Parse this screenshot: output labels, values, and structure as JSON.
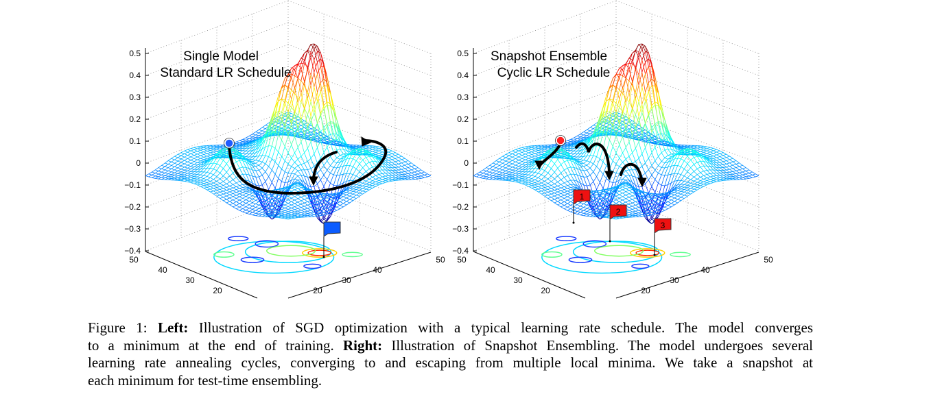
{
  "plots": [
    {
      "title_line1": "Single Model",
      "title_line2": "Standard LR Schedule",
      "marker_color": "#1f5bff",
      "flags": [
        {
          "label": "",
          "color": "#0b5cff"
        }
      ]
    },
    {
      "title_line1": "Snapshot Ensemble",
      "title_line2": "Cyclic LR Schedule",
      "marker_color": "#ff2020",
      "flags": [
        {
          "label": "1",
          "color": "#ee1111"
        },
        {
          "label": "2",
          "color": "#ee1111"
        },
        {
          "label": "3",
          "color": "#ee1111"
        }
      ]
    }
  ],
  "z_ticks": [
    "0.5",
    "0.4",
    "0.3",
    "0.2",
    "0.1",
    "0",
    "−0.1",
    "−0.2",
    "−0.3",
    "−0.4"
  ],
  "left_axis_ticks": [
    "50",
    "40",
    "30",
    "20"
  ],
  "right_axis_ticks": [
    "20",
    "30",
    "40",
    "50"
  ],
  "caption": {
    "l1a": "Figure 1: ",
    "l1b": "Left:",
    "l1c": " Illustration of SGD optimization with a typical learning rate schedule. The model converges",
    "l2a": "to a minimum at the end of training. ",
    "l2b": "Right:",
    "l2c": " Illustration of Snapshot Ensembling. The model undergoes several",
    "l3": "learning rate annealing cycles, converging to and escaping from multiple local minima. We take a snapshot at",
    "l4": "each minimum for test-time ensembling."
  }
}
